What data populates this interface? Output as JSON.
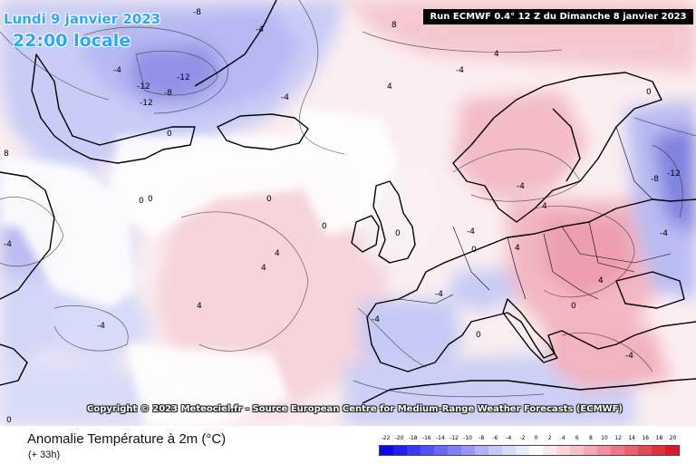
{
  "header": {
    "date_line": "Lundi 9 janvier 2023",
    "time_line": "22:00 locale",
    "run_info": "Run ECMWF 0.4° 12 Z du Dimanche 8 janvier 2023"
  },
  "map": {
    "copyright": "Copyright © 2023 Meteociel.fr - Source European Centre for Medium-Range Weather Forecasts (ECMWF)",
    "contour_labels": [
      {
        "text": "-8"
      },
      {
        "text": "-12"
      },
      {
        "text": "-12"
      },
      {
        "text": "-12"
      },
      {
        "text": "-8"
      },
      {
        "text": "-4"
      },
      {
        "text": "-4"
      },
      {
        "text": "-4"
      },
      {
        "text": "0"
      },
      {
        "text": "0"
      },
      {
        "text": "0"
      },
      {
        "text": "4"
      },
      {
        "text": "4"
      },
      {
        "text": "8"
      },
      {
        "text": "8"
      },
      {
        "text": "-4"
      },
      {
        "text": "0"
      },
      {
        "text": "0"
      },
      {
        "text": "4"
      },
      {
        "text": "4"
      },
      {
        "text": "4"
      },
      {
        "text": "-4"
      },
      {
        "text": "-4"
      },
      {
        "text": "-4"
      },
      {
        "text": "0"
      },
      {
        "text": "-4"
      },
      {
        "text": "0"
      },
      {
        "text": "-4"
      },
      {
        "text": "-12"
      },
      {
        "text": "-8"
      },
      {
        "text": "-4"
      },
      {
        "text": "0"
      },
      {
        "text": "4"
      },
      {
        "text": "4"
      },
      {
        "text": "-4"
      },
      {
        "text": "4"
      },
      {
        "text": "0"
      },
      {
        "text": "-4"
      },
      {
        "text": "0"
      },
      {
        "text": "0"
      }
    ]
  },
  "footer": {
    "title": "Anomalie Température à 2m (°C)",
    "subtitle": "(+ 33h)"
  },
  "legend": {
    "labels": [
      "-22",
      "-20",
      "-18",
      "-16",
      "-14",
      "-12",
      "-10",
      "-8",
      "-6",
      "-4",
      "-2",
      "0",
      "2",
      "4",
      "6",
      "8",
      "10",
      "12",
      "14",
      "16",
      "18",
      "20"
    ],
    "colors": [
      "#0a0af0",
      "#2020f5",
      "#3838f7",
      "#5050f8",
      "#6868fa",
      "#8080fb",
      "#9898fc",
      "#b0b0fd",
      "#c4c8fd",
      "#d6dafe",
      "#e8ecff",
      "#ffffff",
      "#fde8ec",
      "#fbd4dc",
      "#f8c0cc",
      "#f6a8b6",
      "#f290a0",
      "#ee7888",
      "#ea6070",
      "#e64858",
      "#e23040",
      "#de1828"
    ]
  },
  "colors": {
    "land_outline": "#000000",
    "title_accent": "#2aa7ff",
    "cold_strong": "#6f70dd",
    "warm_anomaly": "#f5c4cc"
  }
}
